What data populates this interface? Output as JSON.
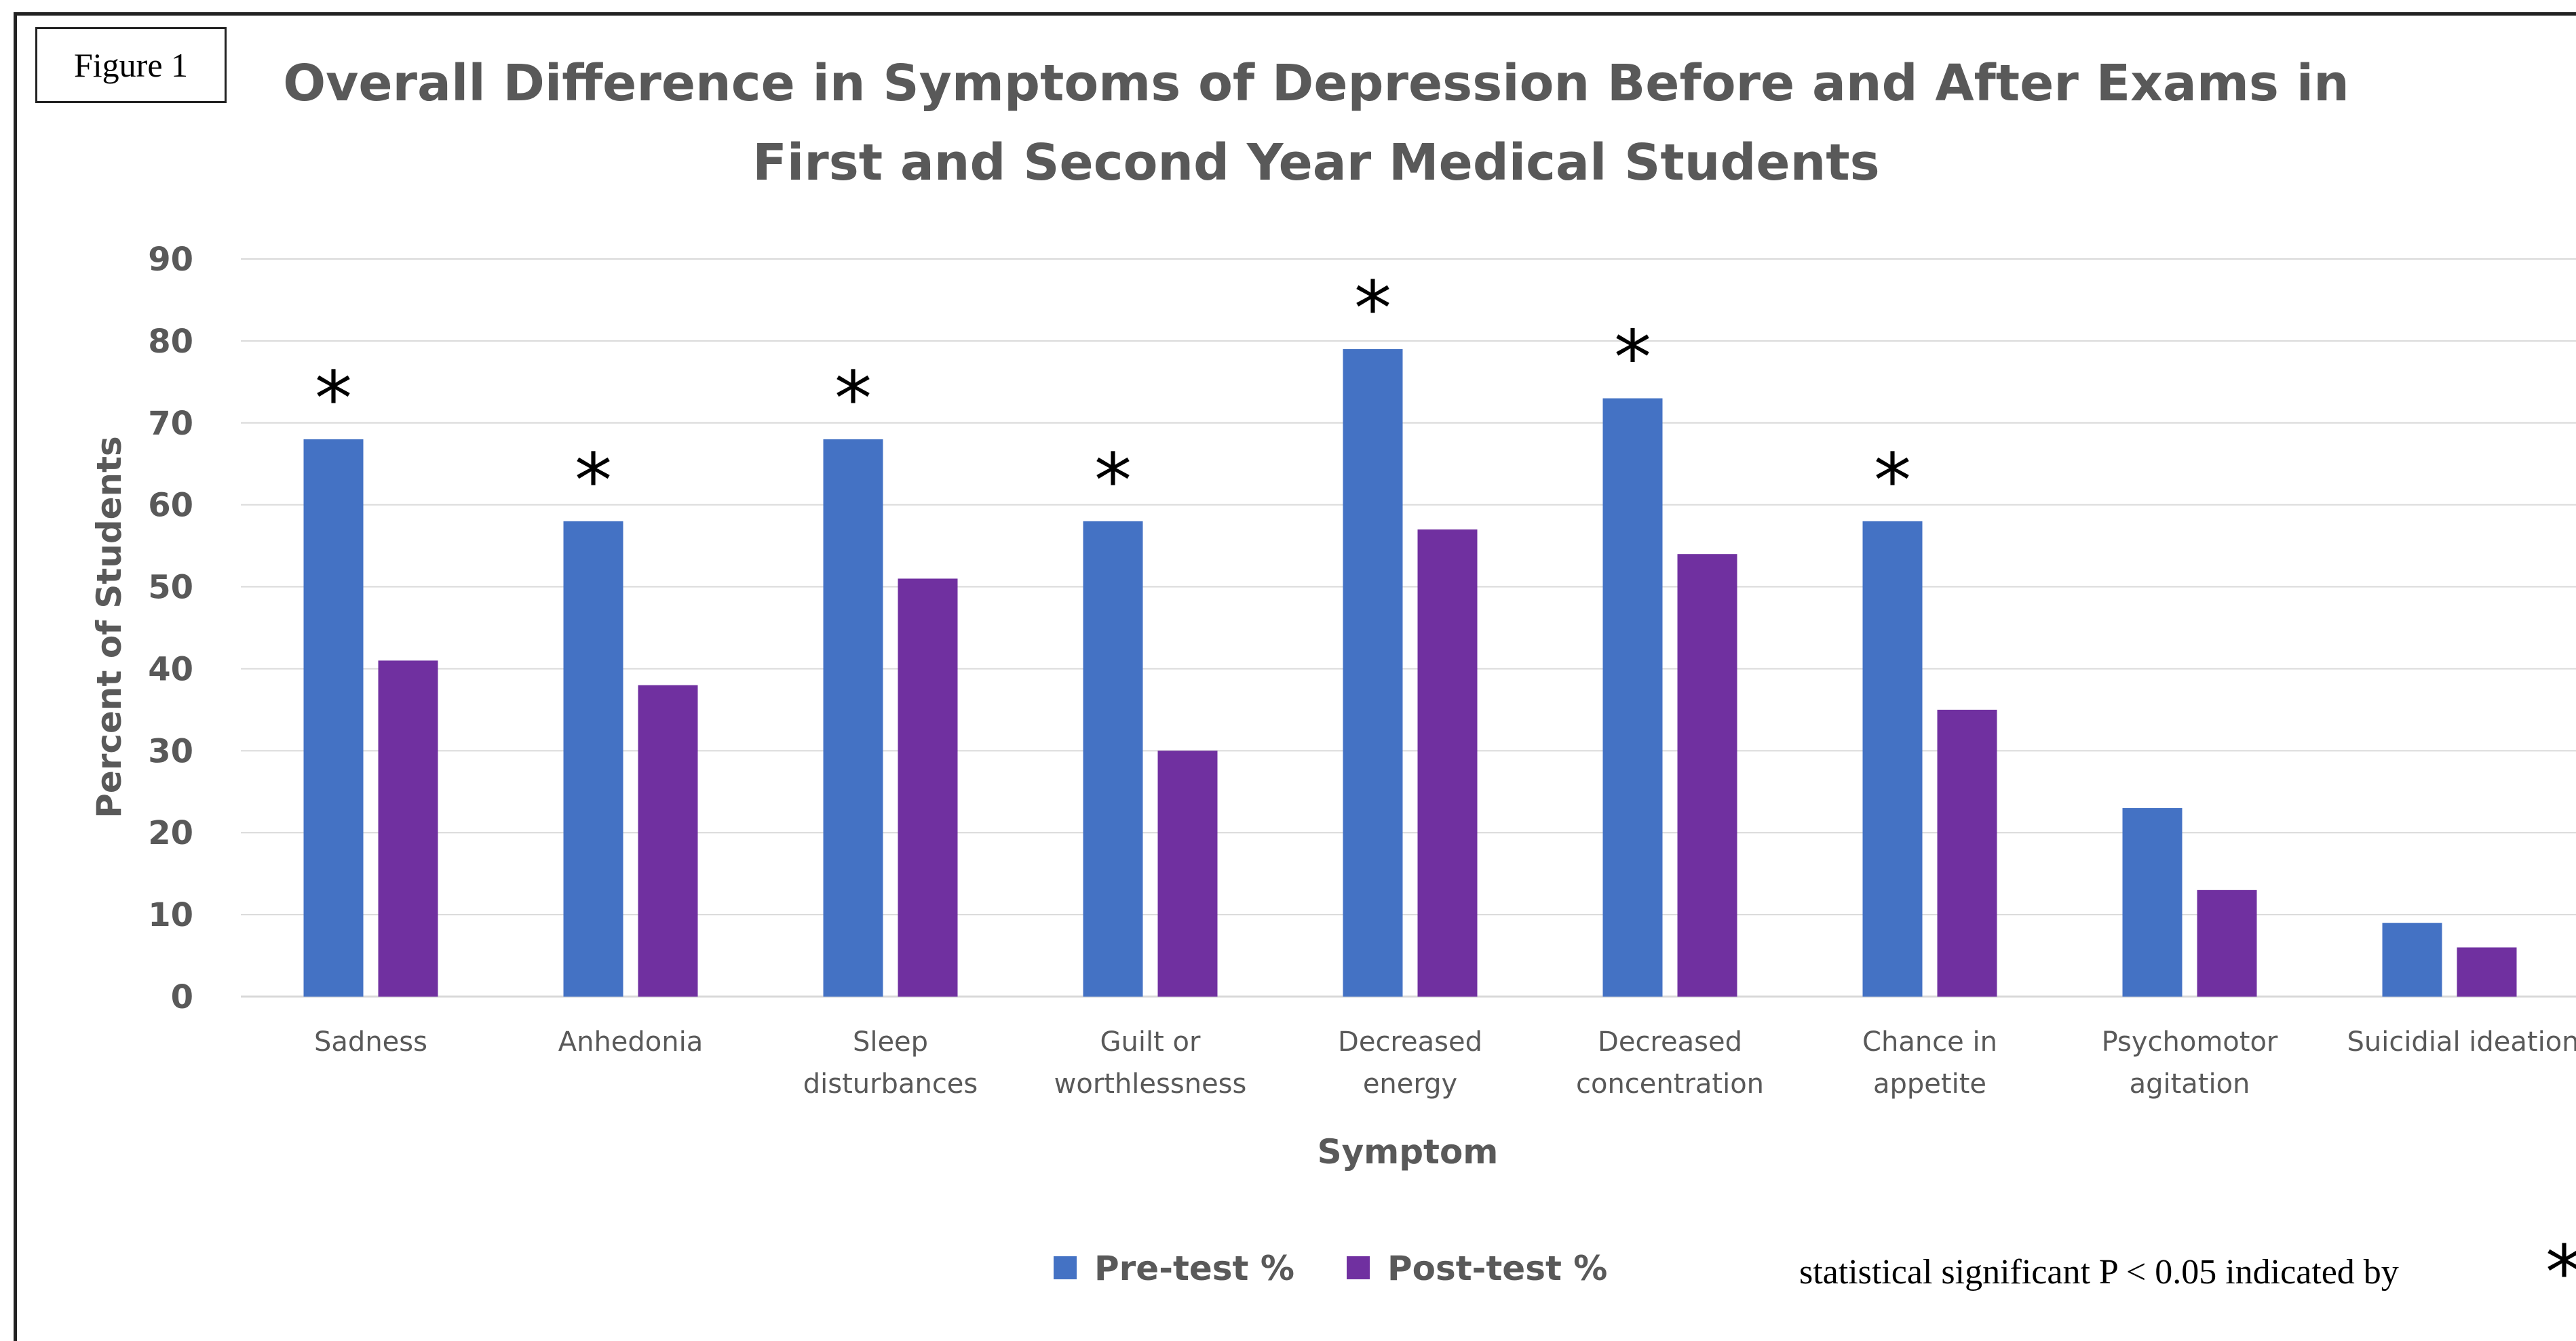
{
  "figure_label": "Figure 1",
  "significance_note": "statistical significant P < 0.05 indicated by",
  "significance_marker": "*",
  "colors": {
    "pre": "#4472C4",
    "post": "#7030A0",
    "grid": "#D9D9D9",
    "text": "#595959"
  },
  "chart_data": {
    "type": "bar",
    "title": "Overall Difference in Symptoms of Depression Before and After Exams in First and Second Year Medical Students",
    "title_lines": [
      "Overall Difference in Symptoms of Depression Before and After Exams in",
      "First and Second Year Medical Students"
    ],
    "xlabel": "Symptom",
    "ylabel": "Percent of Students",
    "ylim": [
      0,
      90
    ],
    "yticks": [
      0,
      10,
      20,
      30,
      40,
      50,
      60,
      70,
      80,
      90
    ],
    "grid": true,
    "legend_position": "bottom",
    "categories": [
      "Sadness",
      "Anhedonia",
      "Sleep disturbances",
      "Guilt or worthlessness",
      "Decreased energy",
      "Decreased concentration",
      "Chance in appetite",
      "Psychomotor agitation",
      "Suicidial ideation"
    ],
    "category_lines": [
      [
        "Sadness"
      ],
      [
        "Anhedonia"
      ],
      [
        "Sleep",
        "disturbances"
      ],
      [
        "Guilt or",
        "worthlessness"
      ],
      [
        "Decreased",
        "energy"
      ],
      [
        "Decreased",
        "concentration"
      ],
      [
        "Chance in",
        "appetite"
      ],
      [
        "Psychomotor",
        "agitation"
      ],
      [
        "Suicidial ideation"
      ]
    ],
    "series": [
      {
        "name": "Pre-test %",
        "values": [
          68,
          58,
          68,
          58,
          79,
          73,
          58,
          23,
          9
        ]
      },
      {
        "name": "Post-test %",
        "values": [
          41,
          38,
          51,
          30,
          57,
          54,
          35,
          13,
          6
        ]
      }
    ],
    "significant": [
      true,
      true,
      true,
      true,
      true,
      true,
      true,
      false,
      false
    ]
  }
}
